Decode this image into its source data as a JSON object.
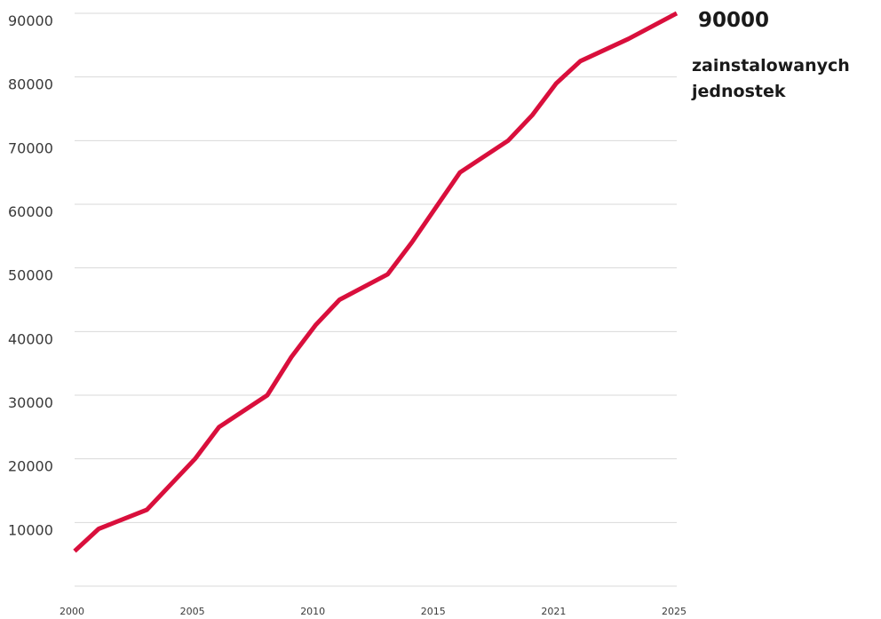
{
  "chart_data": {
    "type": "line",
    "title": "",
    "xlabel": "",
    "ylabel": "",
    "x_tick_labels": [
      "2000",
      "2005",
      "2010",
      "2015",
      "2021",
      "2025"
    ],
    "y_ticks": [
      10000,
      20000,
      30000,
      40000,
      50000,
      60000,
      70000,
      80000,
      90000
    ],
    "ylim": [
      0,
      90000
    ],
    "grid": true,
    "legend": "none",
    "series": [
      {
        "color": "#d90f3c",
        "points": [
          {
            "x": 2000,
            "y": 5500
          },
          {
            "x": 2001,
            "y": 9000
          },
          {
            "x": 2003,
            "y": 12000
          },
          {
            "x": 2004,
            "y": 16000
          },
          {
            "x": 2005,
            "y": 20000
          },
          {
            "x": 2006,
            "y": 25000
          },
          {
            "x": 2008,
            "y": 30000
          },
          {
            "x": 2009,
            "y": 36000
          },
          {
            "x": 2010,
            "y": 41000
          },
          {
            "x": 2011,
            "y": 45000
          },
          {
            "x": 2013,
            "y": 49000
          },
          {
            "x": 2014,
            "y": 54000
          },
          {
            "x": 2015,
            "y": 59500
          },
          {
            "x": 2016,
            "y": 65000
          },
          {
            "x": 2018,
            "y": 70000
          },
          {
            "x": 2019,
            "y": 74000
          },
          {
            "x": 2020,
            "y": 79000
          },
          {
            "x": 2021,
            "y": 82500
          },
          {
            "x": 2023,
            "y": 86000
          },
          {
            "x": 2025,
            "y": 90000
          }
        ]
      }
    ]
  },
  "annotation": {
    "value": "90000",
    "caption": "zainstalowanych jednostek"
  }
}
